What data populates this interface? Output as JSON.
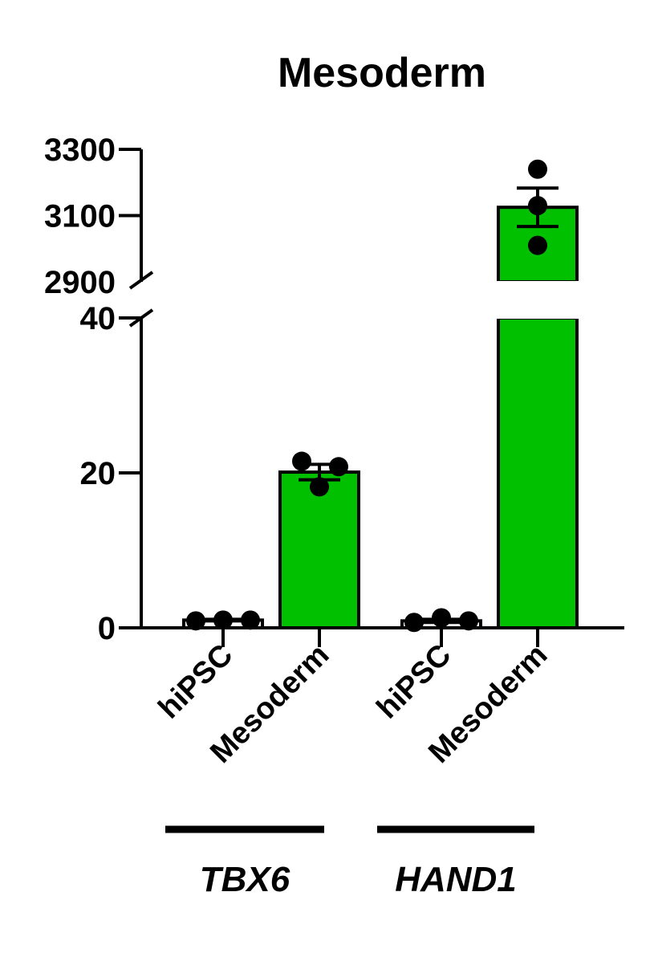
{
  "chart_data": {
    "type": "bar",
    "title": "Mesoderm",
    "xlabel": "",
    "ylabel": "",
    "y_axis_break": {
      "lower_range": [
        0,
        40
      ],
      "upper_range": [
        2900,
        3300
      ]
    },
    "yticks_lower": [
      0,
      20,
      40
    ],
    "yticks_upper": [
      2900,
      3100,
      3300
    ],
    "bars": [
      {
        "label": "hiPSC",
        "group": "TBX6",
        "mean": 1.0,
        "sem": 0.1,
        "points": [
          0.9,
          1.0,
          1.0
        ],
        "color": "#ffffff"
      },
      {
        "label": "Mesoderm",
        "group": "TBX6",
        "mean": 20.1,
        "sem": 1.0,
        "points": [
          21.5,
          20.8,
          18.2
        ],
        "color": "#00c000"
      },
      {
        "label": "hiPSC",
        "group": "HAND1",
        "mean": 0.9,
        "sem": 0.2,
        "points": [
          0.7,
          1.3,
          0.9
        ],
        "color": "#ffffff"
      },
      {
        "label": "Mesoderm",
        "group": "HAND1",
        "mean": 3125,
        "sem": 58,
        "points": [
          3240,
          3130,
          3010
        ],
        "color": "#00c000"
      }
    ],
    "groups": [
      "TBX6",
      "HAND1"
    ],
    "legend": "none",
    "grid": false
  }
}
